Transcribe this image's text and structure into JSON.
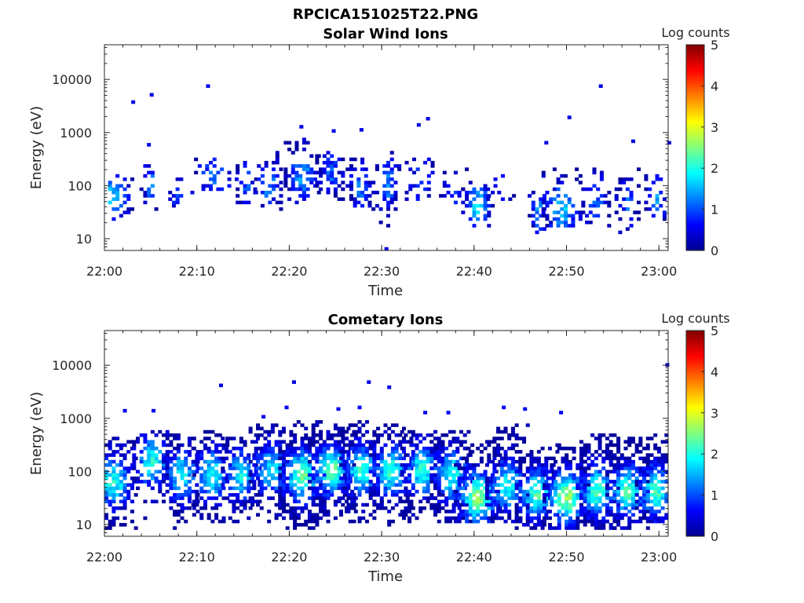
{
  "figure": {
    "title": "RPCICA151025T22.PNG"
  },
  "chart_data": [
    {
      "type": "heatmap",
      "title": "Solar Wind Ions",
      "xlabel": "Time",
      "ylabel": "Energy (eV)",
      "x_ticks": [
        "22:00",
        "22:10",
        "22:20",
        "22:30",
        "22:40",
        "22:50",
        "23:00"
      ],
      "x_range_minutes": [
        0,
        61
      ],
      "y_scale": "log",
      "y_ticks": [
        10,
        100,
        1000,
        10000
      ],
      "y_tick_labels": [
        "10",
        "100",
        "1000",
        "10000"
      ],
      "ylim": [
        6,
        45000
      ],
      "colorbar": {
        "label": "Log counts",
        "min": 0,
        "max": 5,
        "ticks": [
          "0",
          "1",
          "2",
          "3",
          "4",
          "5"
        ]
      },
      "grid": false,
      "bursts": [
        {
          "t": 0.6,
          "center": 60,
          "level": 1.6,
          "width": 2.2,
          "density": 0.6,
          "ymin": 18,
          "ymax": 150
        },
        {
          "t": 4.8,
          "center": 100,
          "level": 1.2,
          "width": 1.0,
          "density": 0.5,
          "ymin": 25,
          "ymax": 250
        },
        {
          "t": 7.7,
          "center": 60,
          "level": 1.0,
          "width": 0.8,
          "density": 0.4,
          "ymin": 30,
          "ymax": 150
        },
        {
          "t": 11.8,
          "center": 150,
          "level": 1.2,
          "width": 2.5,
          "density": 0.35,
          "ymin": 50,
          "ymax": 300
        },
        {
          "t": 15.2,
          "center": 100,
          "level": 1.0,
          "width": 1.0,
          "density": 0.35,
          "ymin": 40,
          "ymax": 300
        },
        {
          "t": 17.6,
          "center": 100,
          "level": 1.3,
          "width": 1.5,
          "density": 0.4,
          "ymin": 30,
          "ymax": 400
        },
        {
          "t": 21.2,
          "center": 150,
          "level": 1.4,
          "width": 1.8,
          "density": 0.55,
          "ymin": 40,
          "ymax": 800
        },
        {
          "t": 24.3,
          "center": 150,
          "level": 1.0,
          "width": 1.5,
          "density": 0.65,
          "ymin": 40,
          "ymax": 400
        },
        {
          "t": 27.5,
          "center": 100,
          "level": 1.2,
          "width": 1.4,
          "density": 0.5,
          "ymin": 30,
          "ymax": 300
        },
        {
          "t": 30.4,
          "center": 100,
          "level": 1.3,
          "width": 1.5,
          "density": 0.45,
          "ymin": 15,
          "ymax": 500
        },
        {
          "t": 34.0,
          "center": 120,
          "level": 1.0,
          "width": 1.5,
          "density": 0.3,
          "ymin": 40,
          "ymax": 300
        },
        {
          "t": 37.6,
          "center": 80,
          "level": 1.0,
          "width": 1.4,
          "density": 0.35,
          "ymin": 30,
          "ymax": 200
        },
        {
          "t": 40.2,
          "center": 40,
          "level": 1.7,
          "width": 1.6,
          "density": 0.55,
          "ymin": 15,
          "ymax": 120
        },
        {
          "t": 42.7,
          "center": 80,
          "level": 0.8,
          "width": 1.4,
          "density": 0.2,
          "ymin": 50,
          "ymax": 200
        },
        {
          "t": 46.8,
          "center": 30,
          "level": 1.3,
          "width": 1.0,
          "density": 0.5,
          "ymin": 12,
          "ymax": 80
        },
        {
          "t": 49.3,
          "center": 35,
          "level": 1.6,
          "width": 2.0,
          "density": 0.55,
          "ymin": 15,
          "ymax": 200
        },
        {
          "t": 53.0,
          "center": 50,
          "level": 1.1,
          "width": 1.4,
          "density": 0.45,
          "ymin": 15,
          "ymax": 200
        },
        {
          "t": 56.4,
          "center": 40,
          "level": 1.0,
          "width": 1.2,
          "density": 0.45,
          "ymin": 12,
          "ymax": 200
        },
        {
          "t": 59.6,
          "center": 50,
          "level": 1.3,
          "width": 1.2,
          "density": 0.45,
          "ymin": 20,
          "ymax": 150
        }
      ],
      "spots": [
        {
          "t": 2.9,
          "e": 3500,
          "level": 0.5
        },
        {
          "t": 4.9,
          "e": 4800,
          "level": 0.5
        },
        {
          "t": 11.0,
          "e": 7000,
          "level": 0.5
        },
        {
          "t": 4.6,
          "e": 550,
          "level": 0.5
        },
        {
          "t": 21.1,
          "e": 1200,
          "level": 0.5
        },
        {
          "t": 24.6,
          "e": 1000,
          "level": 0.5
        },
        {
          "t": 27.6,
          "e": 1050,
          "level": 0.5
        },
        {
          "t": 33.8,
          "e": 1300,
          "level": 0.5
        },
        {
          "t": 34.8,
          "e": 1700,
          "level": 0.5
        },
        {
          "t": 47.6,
          "e": 600,
          "level": 0.5
        },
        {
          "t": 50.1,
          "e": 1800,
          "level": 0.5
        },
        {
          "t": 53.5,
          "e": 7000,
          "level": 0.5
        },
        {
          "t": 57.0,
          "e": 640,
          "level": 0.5
        },
        {
          "t": 60.9,
          "e": 600,
          "level": 0.5
        },
        {
          "t": 30.3,
          "e": 6,
          "level": 0.5
        }
      ]
    },
    {
      "type": "heatmap",
      "title": "Cometary Ions",
      "xlabel": "Time",
      "ylabel": "Energy (eV)",
      "x_ticks": [
        "22:00",
        "22:10",
        "22:20",
        "22:30",
        "22:40",
        "22:50",
        "23:00"
      ],
      "x_range_minutes": [
        0,
        61
      ],
      "y_scale": "log",
      "y_ticks": [
        10,
        100,
        1000,
        10000
      ],
      "y_tick_labels": [
        "10",
        "100",
        "1000",
        "10000"
      ],
      "ylim": [
        6,
        45000
      ],
      "colorbar": {
        "label": "Log counts",
        "min": 0,
        "max": 5,
        "ticks": [
          "0",
          "1",
          "2",
          "3",
          "4",
          "5"
        ]
      },
      "grid": false,
      "bursts": [
        {
          "t": 0.8,
          "center": 60,
          "level": 2.0,
          "width": 2.4,
          "density": 0.8,
          "ymin": 8,
          "ymax": 400
        },
        {
          "t": 5.0,
          "center": 150,
          "level": 2.0,
          "width": 2.0,
          "density": 0.8,
          "ymin": 8,
          "ymax": 600
        },
        {
          "t": 8.2,
          "center": 80,
          "level": 1.9,
          "width": 2.0,
          "density": 0.75,
          "ymin": 8,
          "ymax": 500
        },
        {
          "t": 11.5,
          "center": 80,
          "level": 2.0,
          "width": 2.0,
          "density": 0.75,
          "ymin": 10,
          "ymax": 600
        },
        {
          "t": 14.6,
          "center": 80,
          "level": 1.8,
          "width": 2.0,
          "density": 0.75,
          "ymin": 10,
          "ymax": 500
        },
        {
          "t": 18.0,
          "center": 100,
          "level": 1.8,
          "width": 2.4,
          "density": 0.75,
          "ymin": 10,
          "ymax": 800
        },
        {
          "t": 21.2,
          "center": 80,
          "level": 2.4,
          "width": 2.4,
          "density": 0.85,
          "ymin": 8,
          "ymax": 900
        },
        {
          "t": 24.4,
          "center": 100,
          "level": 2.3,
          "width": 2.4,
          "density": 0.85,
          "ymin": 10,
          "ymax": 800
        },
        {
          "t": 27.6,
          "center": 100,
          "level": 2.1,
          "width": 2.2,
          "density": 0.8,
          "ymin": 10,
          "ymax": 900
        },
        {
          "t": 30.8,
          "center": 100,
          "level": 2.1,
          "width": 2.2,
          "density": 0.8,
          "ymin": 8,
          "ymax": 800
        },
        {
          "t": 34.2,
          "center": 100,
          "level": 2.0,
          "width": 2.2,
          "density": 0.8,
          "ymin": 10,
          "ymax": 600
        },
        {
          "t": 37.4,
          "center": 80,
          "level": 2.0,
          "width": 2.2,
          "density": 0.8,
          "ymin": 10,
          "ymax": 600
        },
        {
          "t": 40.2,
          "center": 30,
          "level": 2.6,
          "width": 2.4,
          "density": 0.85,
          "ymin": 10,
          "ymax": 300
        },
        {
          "t": 43.4,
          "center": 50,
          "level": 2.0,
          "width": 2.2,
          "density": 0.8,
          "ymin": 10,
          "ymax": 700
        },
        {
          "t": 46.6,
          "center": 35,
          "level": 2.2,
          "width": 2.2,
          "density": 0.8,
          "ymin": 8,
          "ymax": 300
        },
        {
          "t": 49.8,
          "center": 30,
          "level": 2.6,
          "width": 2.4,
          "density": 0.8,
          "ymin": 8,
          "ymax": 300
        },
        {
          "t": 53.2,
          "center": 40,
          "level": 2.2,
          "width": 2.2,
          "density": 0.8,
          "ymin": 8,
          "ymax": 500
        },
        {
          "t": 56.4,
          "center": 40,
          "level": 2.2,
          "width": 2.2,
          "density": 0.8,
          "ymin": 8,
          "ymax": 500
        },
        {
          "t": 59.4,
          "center": 40,
          "level": 2.2,
          "width": 2.0,
          "density": 0.8,
          "ymin": 10,
          "ymax": 500
        }
      ],
      "spots": [
        {
          "t": 12.4,
          "e": 3900,
          "level": 0.5
        },
        {
          "t": 20.3,
          "e": 4500,
          "level": 0.5
        },
        {
          "t": 28.4,
          "e": 4500,
          "level": 0.5
        },
        {
          "t": 30.6,
          "e": 3600,
          "level": 0.5
        },
        {
          "t": 2.0,
          "e": 1300,
          "level": 0.6
        },
        {
          "t": 5.1,
          "e": 1300,
          "level": 0.6
        },
        {
          "t": 17.0,
          "e": 1000,
          "level": 0.5
        },
        {
          "t": 19.5,
          "e": 1500,
          "level": 0.6
        },
        {
          "t": 25.1,
          "e": 1400,
          "level": 0.6
        },
        {
          "t": 27.4,
          "e": 1500,
          "level": 0.6
        },
        {
          "t": 34.5,
          "e": 1200,
          "level": 0.6
        },
        {
          "t": 37.0,
          "e": 1200,
          "level": 0.6
        },
        {
          "t": 43.0,
          "e": 1500,
          "level": 0.6
        },
        {
          "t": 45.3,
          "e": 1400,
          "level": 0.6
        },
        {
          "t": 49.2,
          "e": 1200,
          "level": 0.6
        },
        {
          "t": 60.7,
          "e": 9500,
          "level": 0.5
        }
      ]
    }
  ]
}
